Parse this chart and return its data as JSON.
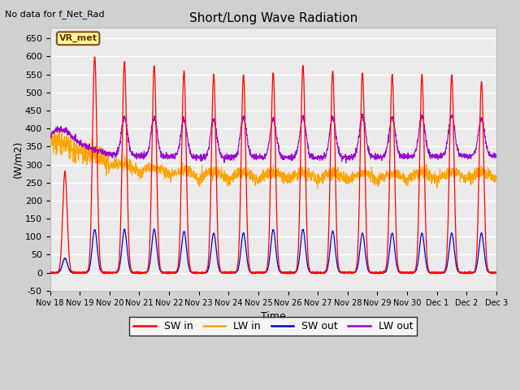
{
  "title": "Short/Long Wave Radiation",
  "xlabel": "Time",
  "ylabel": "(W/m2)",
  "top_left_text": "No data for f_Net_Rad",
  "legend_label": "VR_met",
  "legend_entries": [
    "SW in",
    "LW in",
    "SW out",
    "LW out"
  ],
  "line_colors": [
    "#ff0000",
    "#ffa500",
    "#0000cd",
    "#9900cc"
  ],
  "ylim": [
    -50,
    680
  ],
  "bg_color": "#ebebeb",
  "num_days": 15
}
